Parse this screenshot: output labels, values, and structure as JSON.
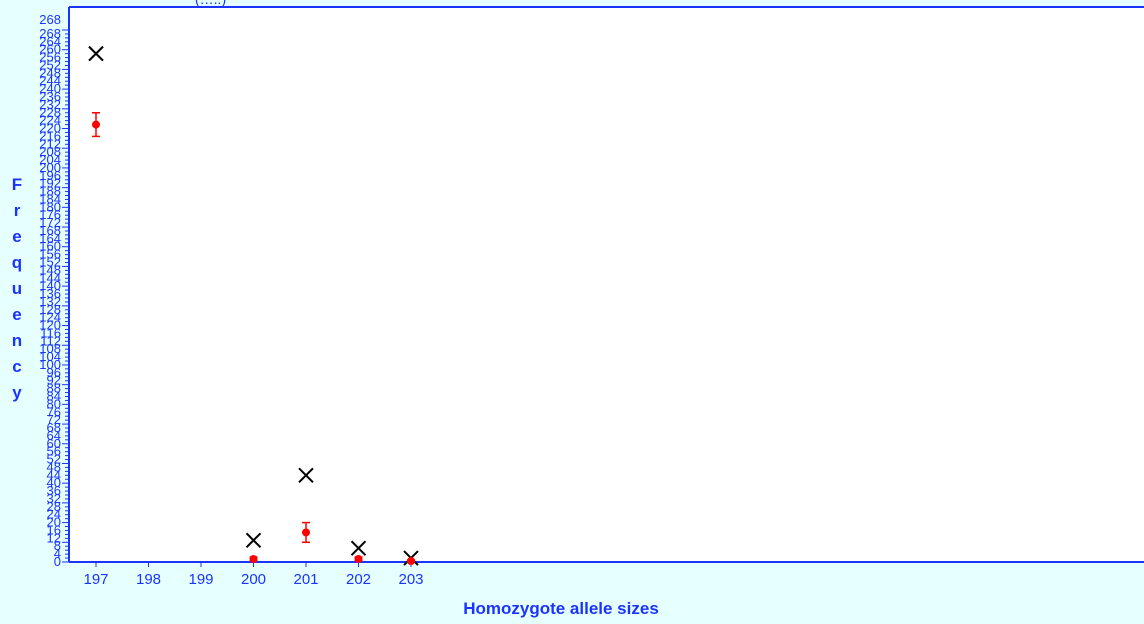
{
  "chart_data": {
    "type": "scatter",
    "title": "(…..)",
    "xlabel": "Homozygote allele sizes",
    "ylabel": "Frequency",
    "x_categories": [
      "197",
      "198",
      "199",
      "200",
      "201",
      "202",
      "203"
    ],
    "y_max_label": "268",
    "ylim": [
      0,
      270
    ],
    "grid": false,
    "series": [
      {
        "marker": "x",
        "color": "#000000",
        "points": [
          {
            "x": "197",
            "y": 258
          },
          {
            "x": "200",
            "y": 11
          },
          {
            "x": "201",
            "y": 44
          },
          {
            "x": "202",
            "y": 7
          },
          {
            "x": "203",
            "y": 2
          }
        ]
      },
      {
        "marker": "dot-errorbar",
        "color": "#ff0000",
        "points": [
          {
            "x": "197",
            "y": 222,
            "low": 216,
            "high": 228
          },
          {
            "x": "200",
            "y": 1.5,
            "low": 0.5,
            "high": 2.5
          },
          {
            "x": "201",
            "y": 15,
            "low": 10,
            "high": 20
          },
          {
            "x": "202",
            "y": 1.5,
            "low": 0.5,
            "high": 2.5
          },
          {
            "x": "203",
            "y": 0.5,
            "low": 0,
            "high": 1
          }
        ]
      }
    ]
  },
  "colors": {
    "background": "#e6ffff",
    "axis": "#1a33ff",
    "cross": "#000000",
    "expected": "#ff0000"
  }
}
